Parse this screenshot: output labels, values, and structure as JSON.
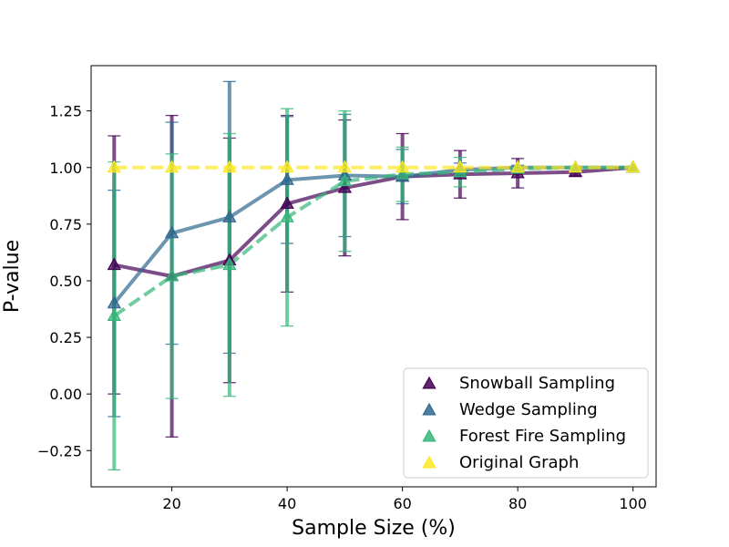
{
  "chart_data": {
    "type": "line",
    "title": "",
    "xlabel": "Sample Size (%)",
    "ylabel": "P-value",
    "xlim": [
      6,
      104
    ],
    "ylim": [
      -0.41,
      1.45
    ],
    "x_ticks": [
      20,
      40,
      60,
      80,
      100
    ],
    "x_tick_labels": [
      "20",
      "40",
      "60",
      "80",
      "100"
    ],
    "y_ticks": [
      -0.25,
      0.0,
      0.25,
      0.5,
      0.75,
      1.0,
      1.25
    ],
    "y_tick_labels": [
      "−0.25",
      "0.00",
      "0.25",
      "0.50",
      "0.75",
      "1.00",
      "1.25"
    ],
    "grid": false,
    "legend_position": "lower-right",
    "x": [
      10,
      20,
      30,
      40,
      50,
      60,
      70,
      80,
      90,
      100
    ],
    "series": [
      {
        "name": "Snowball Sampling",
        "color": "#440154",
        "line_style": "solid",
        "values": [
          0.57,
          0.52,
          0.59,
          0.84,
          0.91,
          0.96,
          0.97,
          0.975,
          0.98,
          1.0
        ],
        "errors": [
          0.57,
          0.71,
          0.54,
          0.39,
          0.3,
          0.19,
          0.105,
          0.065,
          0.015,
          0.0
        ]
      },
      {
        "name": "Wedge Sampling",
        "color": "#31688e",
        "line_style": "solid",
        "values": [
          0.4,
          0.71,
          0.78,
          0.945,
          0.965,
          0.96,
          0.99,
          1.0,
          1.0,
          1.0
        ],
        "errors": [
          0.5,
          0.49,
          0.6,
          0.28,
          0.27,
          0.12,
          0.03,
          0.01,
          0.005,
          0.0
        ]
      },
      {
        "name": "Forest Fire Sampling",
        "color": "#35b779",
        "line_style": "dashed",
        "values": [
          0.345,
          0.52,
          0.57,
          0.78,
          0.94,
          0.97,
          0.98,
          0.995,
          1.0,
          1.0
        ],
        "errors": [
          0.68,
          0.54,
          0.58,
          0.48,
          0.31,
          0.12,
          0.065,
          0.01,
          0.005,
          0.0
        ]
      },
      {
        "name": "Original Graph",
        "color": "#fde725",
        "line_style": "dashed",
        "values": [
          1.0,
          1.0,
          1.0,
          1.0,
          1.0,
          1.0,
          1.0,
          1.0,
          1.0,
          1.0
        ],
        "errors": [
          0,
          0,
          0,
          0,
          0,
          0,
          0,
          0,
          0,
          0
        ]
      }
    ]
  }
}
